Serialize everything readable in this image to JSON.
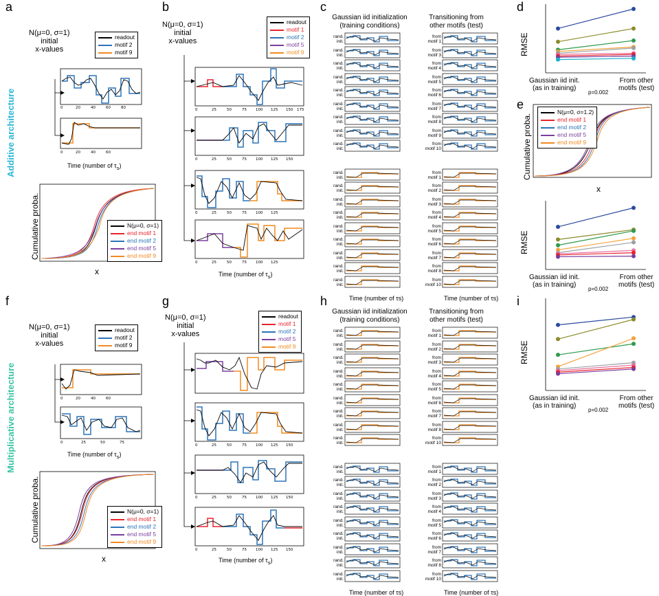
{
  "panel_letters": {
    "a": "a",
    "b": "b",
    "c": "c",
    "d": "d",
    "e": "e",
    "f": "f",
    "g": "g",
    "h": "h",
    "i": "i"
  },
  "architectures": {
    "additive": "Additive architecture",
    "multiplicative": "Multiplicative architecture"
  },
  "init_label": {
    "dist": "N(μ=0, σ=1)",
    "line2": "initial",
    "line3": "x-values"
  },
  "legend_small": {
    "readout": "readout",
    "motif2": "motif 2",
    "motif9": "motif 9"
  },
  "legend_b": {
    "readout": "readout",
    "m1": "motif 1",
    "m2": "motif 2",
    "m5": "motif 5",
    "m9": "motif 9"
  },
  "legend_cdf": {
    "n": "N(μ=0, σ=1)",
    "m1": "end motif 1",
    "m2": "end motif 2",
    "m5": "end motif 5",
    "m9": "end motif 9"
  },
  "legend_e": {
    "n": "N(μ=0, σ=1.2)",
    "m1": "end motif 1",
    "m2": "end motif 2",
    "m5": "end motif 5",
    "m9": "end motif 9"
  },
  "time_label": "Time (number of τ",
  "time_sub": "s",
  "cum_label": "Cumulative proba.",
  "x_label": "x",
  "rmse_label": "RMSE",
  "col_c1": "Gaussian iid initialization\n(training conditions)",
  "col_c2": "Transitioning from\nother motifs (test)",
  "rand_init": "rand.\ninit.",
  "from_motifs_top": [
    "from\nmotif 1",
    "from\nmotif 3",
    "from\nmotif 4",
    "from\nmotif 5",
    "from\nmotif 6",
    "from\nmotif 7",
    "from\nmotif 8",
    "from\nmotif 9",
    "from\nmotif 10"
  ],
  "from_motifs_bottom": [
    "from\nmotif 1",
    "from\nmotif 2",
    "from\nmotif 3",
    "from\nmotif 4",
    "from\nmotif 5",
    "from\nmotif 6",
    "from\nmotif 7",
    "from\nmotif 8",
    "from\nmotif 10"
  ],
  "rmse_x": {
    "left1": "Gaussian iid init.",
    "left2": "(as in training)",
    "right1": "From other",
    "right2": "motifs (test)",
    "p": "p=0.002",
    "stars": "**"
  },
  "colors": {
    "readout": "#000000",
    "m1": "#e8232b",
    "m2": "#2a73b8",
    "m5": "#7a3e9d",
    "m9": "#f28a1f",
    "arch": "#2bb7d6",
    "arch2": "#3cc4a6"
  },
  "chart_data": [
    {
      "type": "line",
      "panel": "d",
      "ylabel": "RMSE",
      "categories": [
        "Gaussian iid init.",
        "From other motifs"
      ],
      "series": [
        {
          "values": [
            0.7,
            1.04
          ]
        },
        {
          "values": [
            0.47,
            0.7
          ]
        },
        {
          "values": [
            0.33,
            0.49
          ]
        },
        {
          "values": [
            0.3,
            0.38
          ]
        },
        {
          "values": [
            0.27,
            0.36
          ]
        },
        {
          "values": [
            0.25,
            0.27
          ]
        },
        {
          "values": [
            0.22,
            0.25
          ]
        },
        {
          "values": [
            0.2,
            0.22
          ]
        },
        {
          "values": [
            0.16,
            0.18
          ]
        }
      ]
    },
    {
      "type": "line",
      "panel": "e-rmse",
      "ylabel": "RMSE",
      "categories": [
        "Gaussian iid init.",
        "From other motifs"
      ],
      "series": [
        {
          "values": [
            0.67,
            1.0
          ]
        },
        {
          "values": [
            0.45,
            0.62
          ]
        },
        {
          "values": [
            0.35,
            0.6
          ]
        },
        {
          "values": [
            0.27,
            0.47
          ]
        },
        {
          "values": [
            0.22,
            0.4
          ]
        },
        {
          "values": [
            0.2,
            0.26
          ]
        },
        {
          "values": [
            0.18,
            0.22
          ]
        },
        {
          "values": [
            0.15,
            0.16
          ]
        }
      ]
    },
    {
      "type": "line",
      "panel": "i",
      "ylabel": "RMSE",
      "categories": [
        "Gaussian iid init.",
        "From other motifs"
      ],
      "series": [
        {
          "values": [
            0.78,
            0.88
          ]
        },
        {
          "values": [
            0.6,
            0.85
          ]
        },
        {
          "values": [
            0.4,
            0.54
          ]
        },
        {
          "values": [
            0.25,
            0.61
          ]
        },
        {
          "values": [
            0.22,
            0.3
          ]
        },
        {
          "values": [
            0.2,
            0.27
          ]
        },
        {
          "values": [
            0.18,
            0.24
          ]
        },
        {
          "values": [
            0.16,
            0.22
          ]
        }
      ]
    }
  ]
}
